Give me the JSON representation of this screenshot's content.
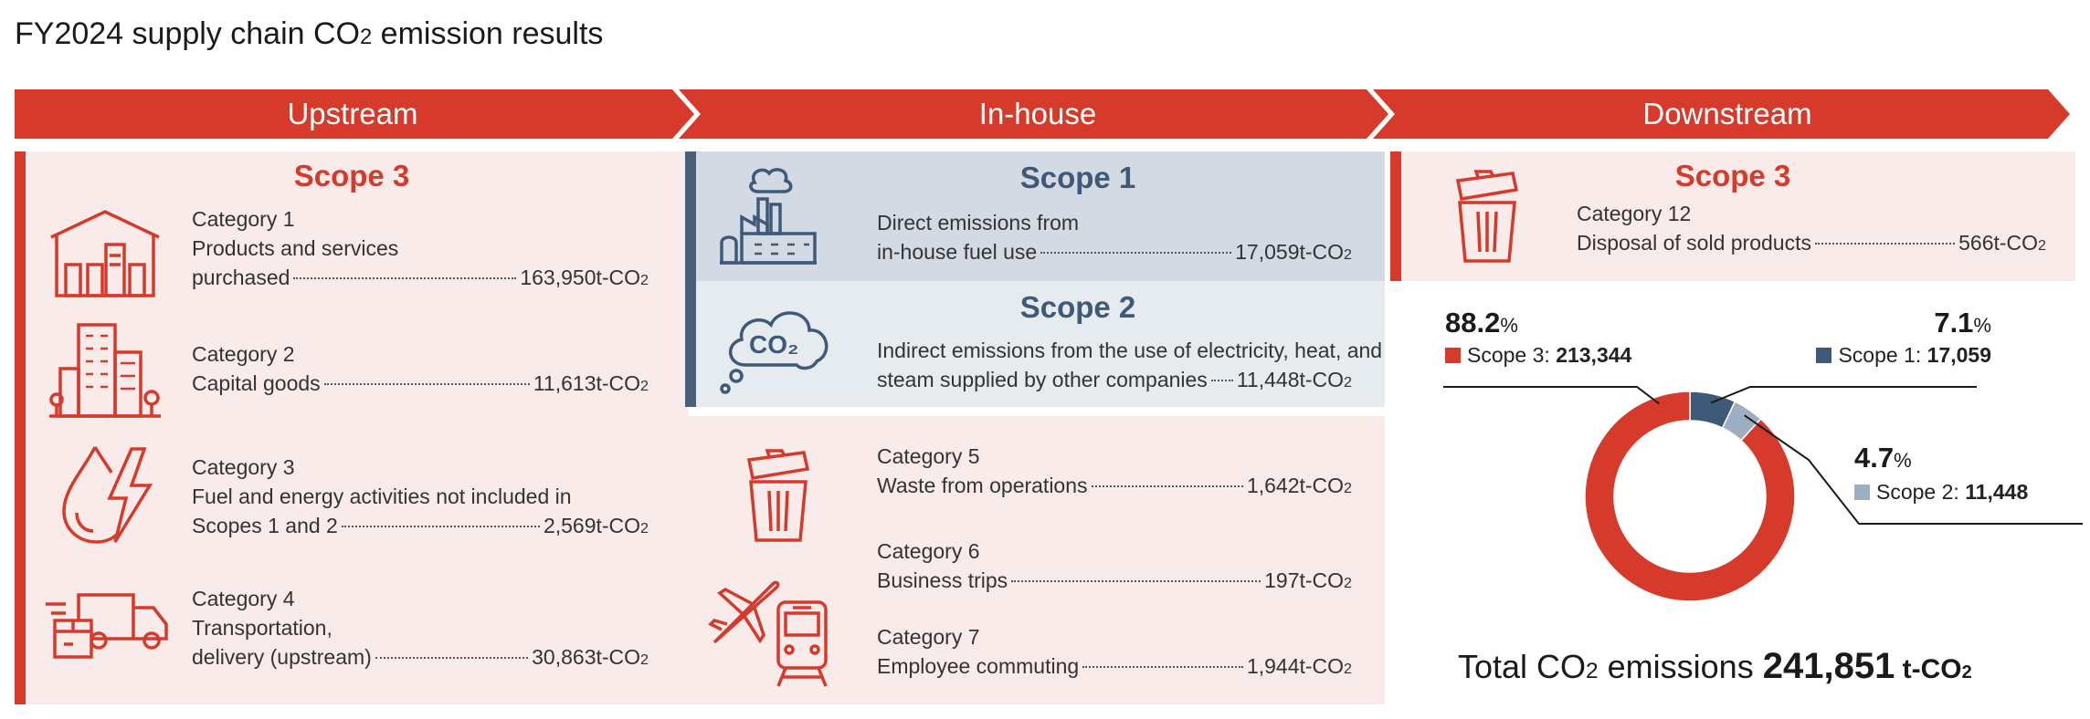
{
  "title": {
    "main": "FY2024 supply chain CO",
    "sub": "2",
    "rest": " emission results"
  },
  "stages": {
    "upstream": "Upstream",
    "inhouse": "In-house",
    "downstream": "Downstream"
  },
  "colors": {
    "red": "#d53a2a",
    "dark_blue": "#3e5a78",
    "light_blue": "#9eaec2",
    "pink_bg": "#f9ebea",
    "blue_bg": "#d7dee7"
  },
  "upstream": {
    "scope": "Scope 3",
    "categories": [
      {
        "title": "Category 1",
        "lines": [
          "Products and services"
        ],
        "last": "purchased",
        "value": "163,950t-CO",
        "icon": "factory-building-icon"
      },
      {
        "title": "Category 2",
        "lines": [],
        "last": "Capital goods",
        "value": "11,613t-CO",
        "icon": "office-buildings-icon"
      },
      {
        "title": "Category 3",
        "lines": [
          "Fuel and energy activities not included in"
        ],
        "last": "Scopes 1 and 2",
        "value": "2,569t-CO",
        "icon": "water-lightning-icon"
      },
      {
        "title": "Category 4",
        "lines": [
          "Transportation,"
        ],
        "last": "delivery (upstream)",
        "value": "30,863t-CO",
        "icon": "delivery-truck-icon"
      }
    ]
  },
  "inhouse": {
    "scope1": {
      "title": "Scope 1",
      "lines": [
        "Direct emissions from"
      ],
      "last": "in-house fuel use",
      "value": "17,059t-CO",
      "icon": "factory-smoke-icon"
    },
    "scope2": {
      "title": "Scope 2",
      "lines": [
        "Indirect emissions from the use of electricity, heat, and"
      ],
      "last": "steam supplied by other companies",
      "value": "11,448t-CO",
      "icon": "co2-cloud-icon",
      "icon_text": "CO₂"
    },
    "categories": [
      {
        "title": "Category 5",
        "last": "Waste from operations",
        "value": "1,642t-CO",
        "icon": "trash-can-icon"
      },
      {
        "title": "Category 6",
        "last": "Business trips",
        "value": "197t-CO",
        "icon": "airplane-icon"
      },
      {
        "title": "Category 7",
        "last": "Employee commuting",
        "value": "1,944t-CO",
        "icon": "train-icon"
      }
    ]
  },
  "downstream": {
    "scope": "Scope 3",
    "category": {
      "title": "Category 12",
      "last": "Disposal of sold products",
      "value": "566t-CO",
      "icon": "trash-can-icon"
    }
  },
  "chart_data": {
    "type": "pie",
    "donut": true,
    "series": [
      {
        "name": "Scope 3",
        "value": 213344,
        "percent": "88.2",
        "value_label": "213,344",
        "color": "#d53a2a"
      },
      {
        "name": "Scope 1",
        "value": 17059,
        "percent": "7.1",
        "value_label": "17,059",
        "color": "#3e5a78"
      },
      {
        "name": "Scope 2",
        "value": 11448,
        "percent": "4.7",
        "value_label": "11,448",
        "color": "#9eaec2"
      }
    ],
    "total": {
      "label": "Total CO",
      "label_sub": "2",
      "label_rest": " emissions",
      "value": "241,851",
      "unit": " t-CO",
      "unit_sub": "2"
    },
    "percent_sign": "%"
  }
}
